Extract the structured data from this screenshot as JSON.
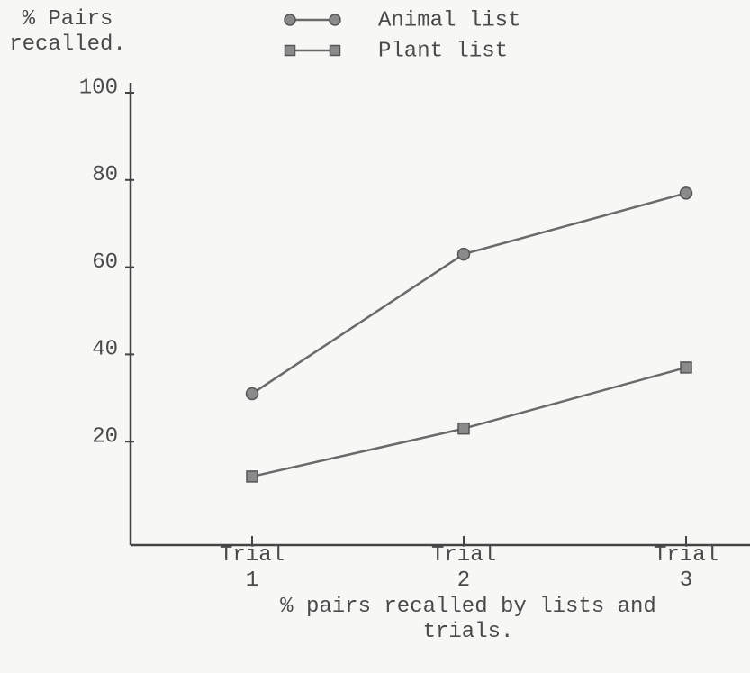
{
  "chart_data": {
    "type": "line",
    "y_label": "% Pairs recalled.",
    "caption": "% pairs recalled by lists and trials.",
    "categories": [
      "Trial 1",
      "Trial 2",
      "Trial 3"
    ],
    "series": [
      {
        "name": "Animal list",
        "color": "#6a6a6a",
        "marker": "circle",
        "values": [
          31,
          63,
          77
        ]
      },
      {
        "name": "Plant list",
        "color": "#6a6a6a",
        "marker": "square",
        "values": [
          12,
          23,
          37
        ]
      }
    ],
    "ylim": [
      0,
      100
    ],
    "yticks": [
      20,
      40,
      60,
      80,
      100
    ]
  }
}
